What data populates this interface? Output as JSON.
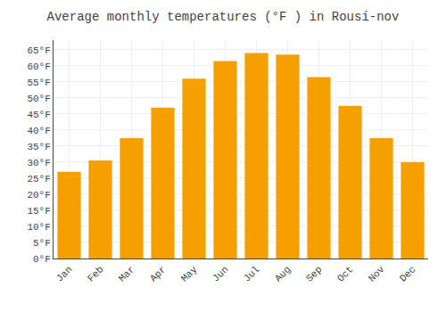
{
  "chart_data": {
    "type": "bar",
    "title": "Average monthly temperatures (°F ) in Rousí-nov",
    "categories": [
      "Jan",
      "Feb",
      "Mar",
      "Apr",
      "May",
      "Jun",
      "Jul",
      "Aug",
      "Sep",
      "Oct",
      "Nov",
      "Dec"
    ],
    "values": [
      27,
      30.5,
      37.5,
      47,
      56,
      61.5,
      64,
      63.5,
      56.5,
      47.5,
      37.5,
      30
    ],
    "color": "#F5A000",
    "ylim": [
      0,
      68
    ],
    "yticks": [
      {
        "value": 0,
        "label": "0°F"
      },
      {
        "value": 5,
        "label": "5°F"
      },
      {
        "value": 10,
        "label": "10°F"
      },
      {
        "value": 15,
        "label": "15°F"
      },
      {
        "value": 20,
        "label": "20°F"
      },
      {
        "value": 25,
        "label": "25°F"
      },
      {
        "value": 30,
        "label": "30°F"
      },
      {
        "value": 35,
        "label": "35°F"
      },
      {
        "value": 40,
        "label": "40°F"
      },
      {
        "value": 45,
        "label": "45°F"
      },
      {
        "value": 50,
        "label": "50°F"
      },
      {
        "value": 55,
        "label": "55°F"
      },
      {
        "value": 60,
        "label": "60°F"
      },
      {
        "value": 65,
        "label": "65°F"
      }
    ],
    "grid": true
  }
}
